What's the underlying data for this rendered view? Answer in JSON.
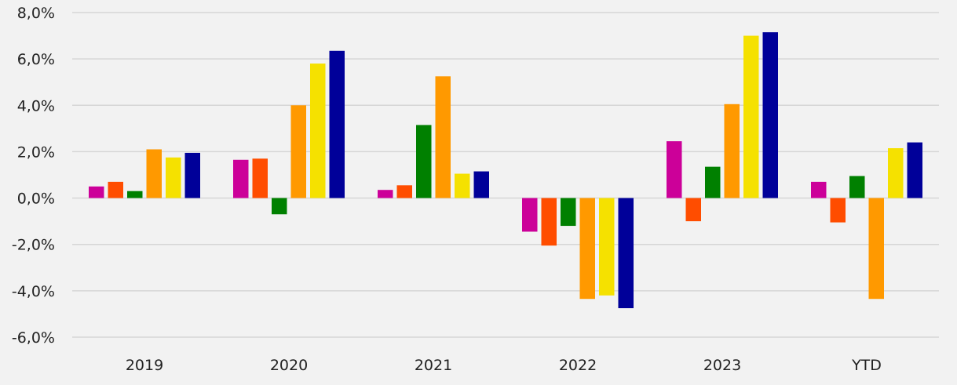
{
  "chart_data": {
    "type": "bar",
    "title": "",
    "xlabel": "",
    "ylabel": "",
    "categories": [
      "2019",
      "2020",
      "2021",
      "2022",
      "2023",
      "YTD"
    ],
    "ylim": [
      -6,
      8
    ],
    "yticks": [
      8,
      6,
      4,
      2,
      0,
      -2,
      -4,
      -6
    ],
    "ytick_labels": [
      "8,0%",
      "6,0%",
      "4,0%",
      "2,0%",
      "0,0%",
      "-2,0%",
      "-4,0%",
      "-6,0%"
    ],
    "grid": true,
    "legend": "none",
    "series": [
      {
        "color": "#cc0099",
        "values": [
          0.5,
          1.65,
          0.35,
          -1.45,
          2.45,
          0.7
        ]
      },
      {
        "color": "#ff4d00",
        "values": [
          0.7,
          1.7,
          0.55,
          -2.05,
          -1.0,
          -1.05
        ]
      },
      {
        "color": "#008000",
        "values": [
          0.3,
          -0.7,
          3.15,
          -1.2,
          1.35,
          0.95
        ]
      },
      {
        "color": "#ff9900",
        "values": [
          2.1,
          4.0,
          5.25,
          -4.35,
          4.05,
          -4.35
        ]
      },
      {
        "color": "#f5e100",
        "values": [
          1.75,
          5.8,
          1.05,
          -4.2,
          7.0,
          2.15
        ]
      },
      {
        "color": "#000099",
        "values": [
          1.95,
          6.35,
          1.15,
          -4.75,
          7.15,
          2.4
        ]
      }
    ]
  }
}
